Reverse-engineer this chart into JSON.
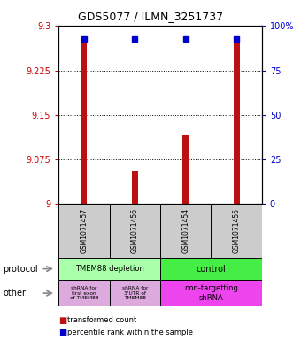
{
  "title": "GDS5077 / ILMN_3251737",
  "samples": [
    "GSM1071457",
    "GSM1071456",
    "GSM1071454",
    "GSM1071455"
  ],
  "red_values": [
    9.275,
    9.055,
    9.115,
    9.275
  ],
  "blue_values": [
    93,
    93,
    93,
    93
  ],
  "ylim_left": [
    9.0,
    9.3
  ],
  "ylim_right": [
    0,
    100
  ],
  "yticks_left": [
    9.0,
    9.075,
    9.15,
    9.225,
    9.3
  ],
  "yticks_right": [
    0,
    25,
    50,
    75,
    100
  ],
  "ytick_labels_left": [
    "9",
    "9.075",
    "9.15",
    "9.225",
    "9.3"
  ],
  "ytick_labels_right": [
    "0",
    "25",
    "50",
    "75",
    "100%"
  ],
  "gridlines": [
    9.075,
    9.15,
    9.225
  ],
  "protocol_labels": [
    "TMEM88 depletion",
    "control"
  ],
  "protocol_colors": [
    "#aaffaa",
    "#44ee44"
  ],
  "other_labels": [
    "shRNA for\nfirst exon\nof TMEM88",
    "shRNA for\n3'UTR of\nTMEM88",
    "non-targetting\nshRNA"
  ],
  "other_colors_left": "#ddaadd",
  "other_colors_right": "#ee44ee",
  "sample_box_color": "#cccccc",
  "bar_color_red": "#bb1111",
  "bar_color_blue": "#0000cc",
  "base_value": 9.0,
  "right_axis_color": "#0000cc",
  "left_axis_color": "#cc0000"
}
